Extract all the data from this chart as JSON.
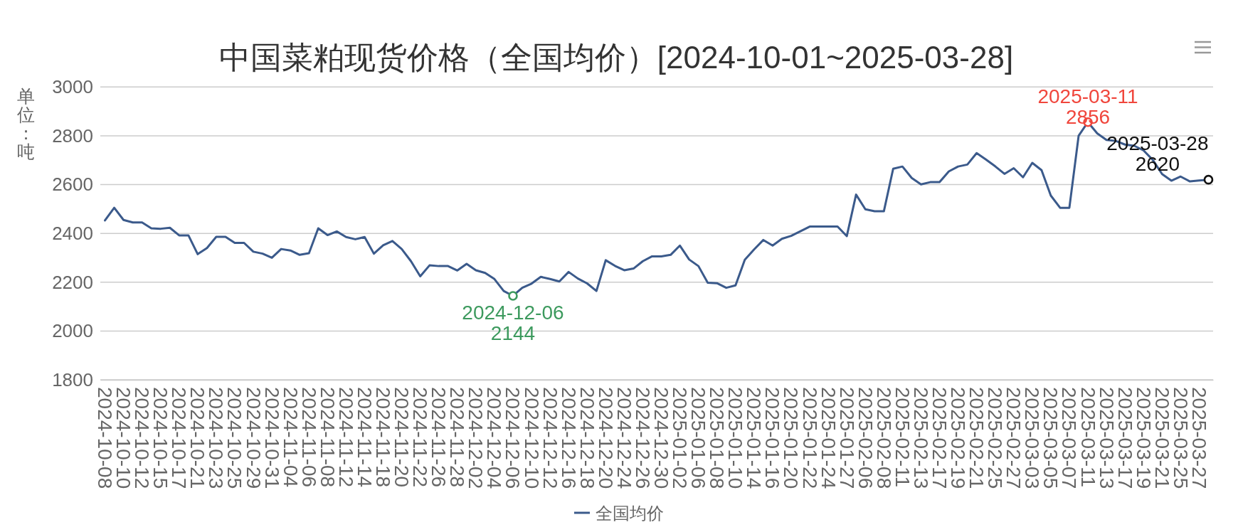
{
  "chart_data": {
    "type": "line",
    "title": "中国菜粕现货价格（全国均价）[2024-10-01~2025-03-28]",
    "ylabel": "单位：吨",
    "categories": [
      "2024-10-08",
      null,
      "2024-10-10",
      null,
      "2024-10-12",
      null,
      "2024-10-15",
      null,
      "2024-10-17",
      null,
      "2024-10-21",
      null,
      "2024-10-23",
      null,
      "2024-10-25",
      null,
      "2024-10-29",
      null,
      "2024-10-31",
      null,
      "2024-11-04",
      null,
      "2024-11-06",
      null,
      "2024-11-08",
      null,
      "2024-11-12",
      null,
      "2024-11-14",
      null,
      "2024-11-18",
      null,
      "2024-11-20",
      null,
      "2024-11-22",
      null,
      "2024-11-26",
      null,
      "2024-11-28",
      null,
      "2024-12-02",
      null,
      "2024-12-04",
      null,
      "2024-12-06",
      null,
      "2024-12-10",
      null,
      "2024-12-12",
      null,
      "2024-12-16",
      null,
      "2024-12-18",
      null,
      "2024-12-20",
      null,
      "2024-12-24",
      null,
      "2024-12-26",
      null,
      "2024-12-30",
      null,
      "2025-01-02",
      null,
      "2025-01-06",
      null,
      "2025-01-08",
      null,
      "2025-01-10",
      null,
      "2025-01-14",
      null,
      "2025-01-16",
      null,
      "2025-01-20",
      null,
      "2025-01-22",
      null,
      "2025-01-24",
      null,
      "2025-01-27",
      null,
      "2025-02-06",
      null,
      "2025-02-08",
      null,
      "2025-02-11",
      null,
      "2025-02-13",
      null,
      "2025-02-17",
      null,
      "2025-02-19",
      null,
      "2025-02-21",
      null,
      "2025-02-25",
      null,
      "2025-02-27",
      null,
      "2025-03-03",
      null,
      "2025-03-05",
      null,
      "2025-03-07",
      null,
      "2025-03-11",
      null,
      "2025-03-13",
      null,
      "2025-03-17",
      null,
      "2025-03-19",
      null,
      "2025-03-21",
      null,
      "2025-03-25",
      null,
      "2025-03-27",
      null
    ],
    "series": [
      {
        "name": "全国均价",
        "color": "#3b5a8b",
        "values": [
          2453,
          2505,
          2455,
          2445,
          2445,
          2421,
          2419,
          2423,
          2392,
          2392,
          2315,
          2340,
          2386,
          2386,
          2361,
          2361,
          2325,
          2317,
          2300,
          2336,
          2330,
          2312,
          2319,
          2421,
          2393,
          2408,
          2385,
          2376,
          2385,
          2317,
          2351,
          2369,
          2336,
          2286,
          2224,
          2269,
          2266,
          2266,
          2248,
          2275,
          2249,
          2238,
          2213,
          2164,
          2144,
          2177,
          2194,
          2222,
          2213,
          2203,
          2242,
          2215,
          2195,
          2164,
          2290,
          2267,
          2249,
          2256,
          2286,
          2306,
          2306,
          2312,
          2350,
          2293,
          2266,
          2198,
          2196,
          2177,
          2187,
          2292,
          2334,
          2373,
          2350,
          2378,
          2390,
          2409,
          2428,
          2428,
          2428,
          2428,
          2389,
          2559,
          2499,
          2491,
          2491,
          2665,
          2674,
          2627,
          2601,
          2610,
          2610,
          2654,
          2674,
          2682,
          2729,
          2703,
          2675,
          2644,
          2667,
          2630,
          2689,
          2659,
          2555,
          2505,
          2505,
          2800,
          2856,
          2810,
          2783,
          2779,
          2764,
          2759,
          2740,
          2701,
          2643,
          2616,
          2633,
          2613,
          2617,
          2620
        ]
      }
    ],
    "ylim": [
      1800,
      3000
    ],
    "yticks": [
      1800,
      2000,
      2200,
      2400,
      2600,
      2800,
      3000
    ],
    "grid": "y",
    "legend": "bottom",
    "annotations": [
      {
        "text": "2024-12-06\n2144",
        "x": "2024-12-06",
        "y": 2144
      },
      {
        "text": "2025-03-11\n2856",
        "x": "2025-03-11",
        "y": 2856
      },
      "2025-03-28\n2620"
    ]
  }
}
